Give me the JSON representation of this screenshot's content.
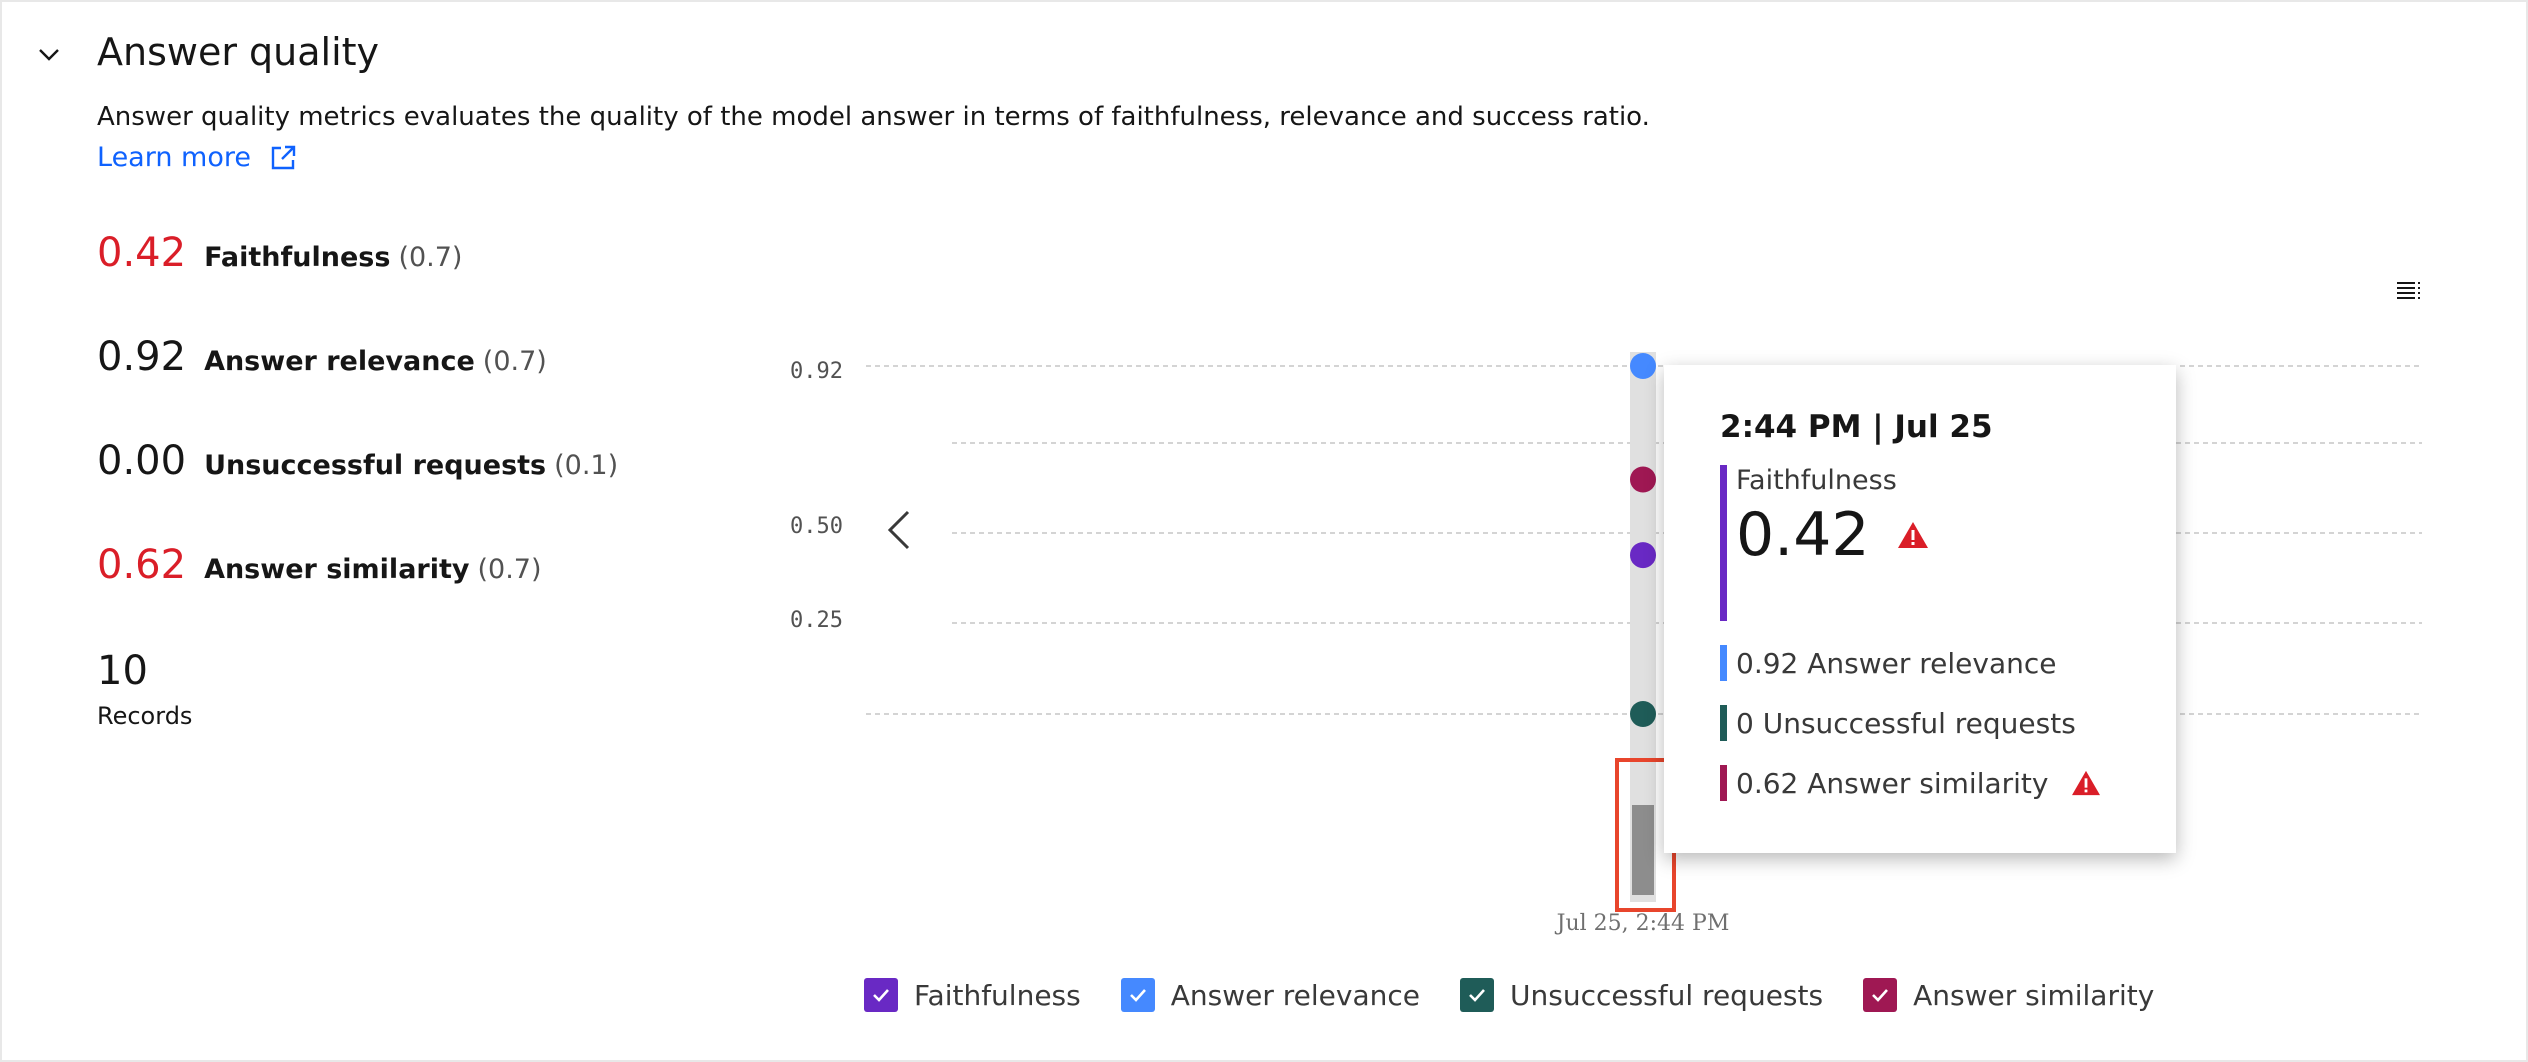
{
  "section": {
    "title": "Answer quality",
    "description": "Answer quality metrics evaluates the quality of the model answer in terms of faithfulness, relevance and success ratio.",
    "learn_more": "Learn more"
  },
  "metrics": [
    {
      "value": "0.42",
      "label": "Faithfulness",
      "threshold": "(0.7)",
      "status": "bad"
    },
    {
      "value": "0.92",
      "label": "Answer relevance",
      "threshold": "(0.7)",
      "status": "ok"
    },
    {
      "value": "0.00",
      "label": "Unsuccessful requests",
      "threshold": "(0.1)",
      "status": "ok"
    },
    {
      "value": "0.62",
      "label": "Answer similarity",
      "threshold": "(0.7)",
      "status": "bad"
    }
  ],
  "records": {
    "value": "10",
    "label": "Records"
  },
  "chart_data": {
    "type": "scatter",
    "y_ticks": [
      "0.92",
      "0.50",
      "0.25"
    ],
    "x_ticks": [
      "Jul 25, 2:44 PM"
    ],
    "ylim": [
      0,
      0.92
    ],
    "grid": true,
    "series": [
      {
        "name": "Faithfulness",
        "color": "#6929c4",
        "values": [
          0.42
        ]
      },
      {
        "name": "Answer relevance",
        "color": "#4589ff",
        "values": [
          0.92
        ]
      },
      {
        "name": "Unsuccessful requests",
        "color": "#1f5c58",
        "values": [
          0
        ]
      },
      {
        "name": "Answer similarity",
        "color": "#9f1853",
        "values": [
          0.62
        ]
      }
    ]
  },
  "tooltip": {
    "time": "2:44 PM | Jul 25",
    "main_label": "Faithfulness",
    "main_value": "0.42",
    "rows": [
      {
        "text": "0.92 Answer relevance",
        "color": "#4589ff",
        "warn": false
      },
      {
        "text": "0 Unsuccessful requests",
        "color": "#1f5c58",
        "warn": false
      },
      {
        "text": "0.62 Answer similarity",
        "color": "#9f1853",
        "warn": true
      }
    ]
  },
  "legend": [
    {
      "label": "Faithfulness",
      "color": "#6929c4"
    },
    {
      "label": "Answer relevance",
      "color": "#4589ff"
    },
    {
      "label": "Unsuccessful requests",
      "color": "#1f5c58"
    },
    {
      "label": "Answer similarity",
      "color": "#9f1853"
    }
  ],
  "icons": {
    "collapse": "chevron-down-icon",
    "external": "external-link-icon",
    "menu": "list-menu-icon",
    "prev": "chevron-left-icon",
    "warning": "warning-triangle-icon"
  },
  "colors": {
    "bad": "#da1e28",
    "link": "#0f62fe",
    "highlight": "#e8452c"
  }
}
